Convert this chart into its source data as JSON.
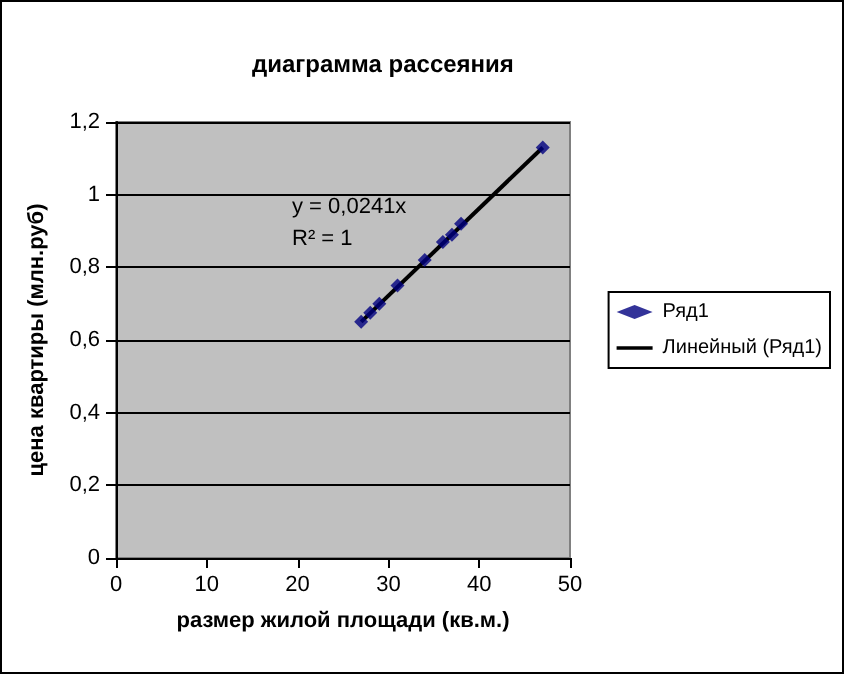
{
  "chart_data": {
    "type": "scatter",
    "title": "диаграмма рассеяния",
    "xlabel": "размер жилой площади (кв.м.)",
    "ylabel": "цена квартиры (млн.руб)",
    "x": [
      27,
      28,
      29,
      31,
      34,
      36,
      37,
      38,
      47
    ],
    "series": [
      {
        "name": "Ряд1",
        "color": "#000080",
        "marker": "diamond",
        "values": [
          0.65,
          0.675,
          0.7,
          0.75,
          0.82,
          0.87,
          0.89,
          0.92,
          1.13
        ]
      },
      {
        "name": "Линейный (Ряд1)",
        "type": "line",
        "color": "#000000",
        "marker": "none",
        "line_style": "solid",
        "x": [
          27,
          47
        ],
        "values": [
          0.65,
          1.13
        ]
      }
    ],
    "annotations": [
      "y = 0,0241x",
      "R² = 1"
    ],
    "xlim": [
      0,
      50
    ],
    "xticks": [
      0,
      10,
      20,
      30,
      40,
      50
    ],
    "ylim": [
      0,
      1.2
    ],
    "yticks": [
      {
        "value": 0,
        "label": "0"
      },
      {
        "value": 0.2,
        "label": "0,2"
      },
      {
        "value": 0.4,
        "label": "0,4"
      },
      {
        "value": 0.6,
        "label": "0,6"
      },
      {
        "value": 0.8,
        "label": "0,8"
      },
      {
        "value": 1,
        "label": "1"
      },
      {
        "value": 1.2,
        "label": "1,2"
      }
    ],
    "grid": "y",
    "legend": "right"
  }
}
